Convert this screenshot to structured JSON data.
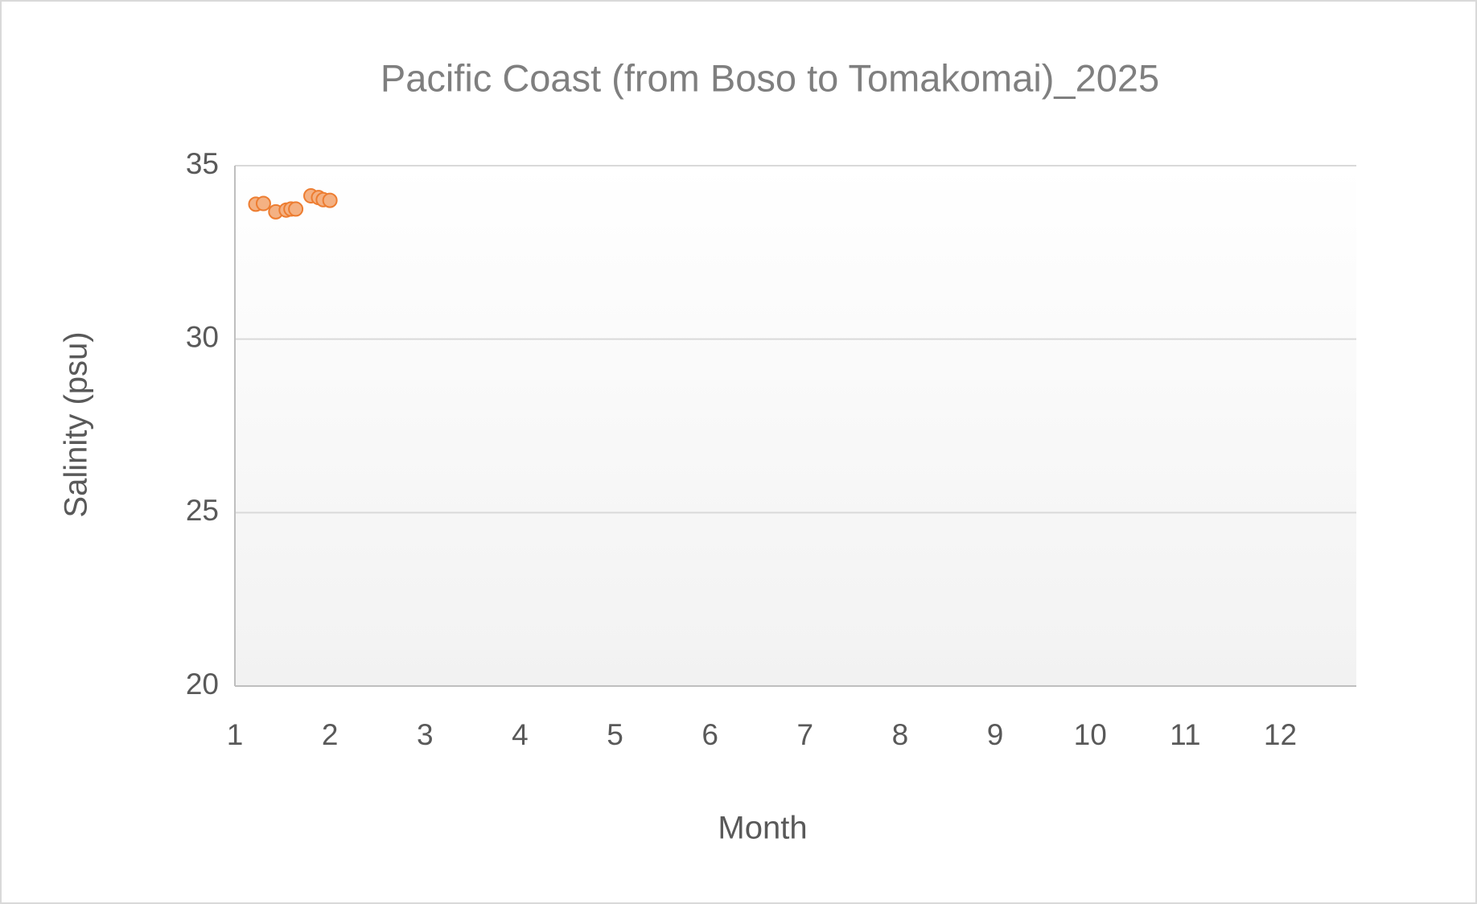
{
  "chart_data": {
    "type": "scatter",
    "title": "Pacific Coast (from Boso to Tomakomai)_2025",
    "x_label": "Month",
    "y_label": "Salinity (psu)",
    "x": [
      1.22,
      1.3,
      1.43,
      1.54,
      1.59,
      1.64,
      1.8,
      1.88,
      1.93,
      2.0
    ],
    "values": [
      33.89,
      33.91,
      33.67,
      33.72,
      33.75,
      33.75,
      34.13,
      34.08,
      34.02,
      34.0
    ],
    "color": "#f4b183",
    "edge_color": "#ed7d31",
    "xlim": [
      1,
      12.8
    ],
    "xticks": [
      1,
      2,
      3,
      4,
      5,
      6,
      7,
      8,
      9,
      10,
      11,
      12
    ],
    "ylim": [
      20,
      35
    ],
    "yticks": [
      20,
      25,
      30,
      35
    ],
    "grid": true
  }
}
